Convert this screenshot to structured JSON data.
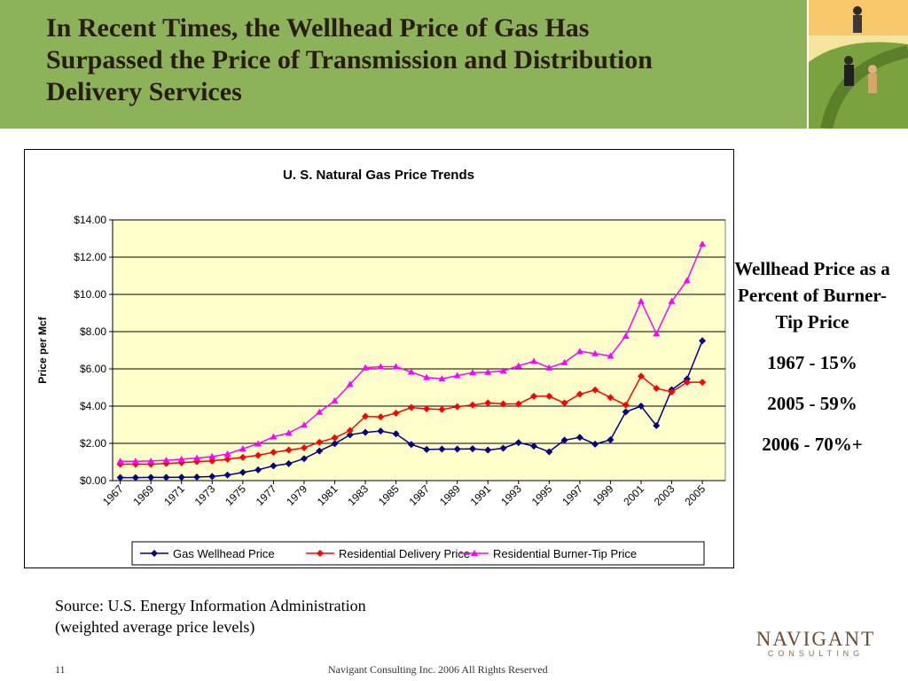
{
  "slide": {
    "title_lines": [
      "In Recent Times, the Wellhead Price of Gas Has",
      "Surpassed the Price of Transmission and Distribution",
      "Delivery Services"
    ]
  },
  "sidebar": {
    "heading": "Wellhead Price as a Percent of Burner-Tip Price",
    "stats": [
      "1967 - 15%",
      "2005 - 59%",
      "2006 - 70%+"
    ]
  },
  "source": {
    "line1": "Source: U.S. Energy Information Administration",
    "line2": "(weighted average price levels)"
  },
  "footer": {
    "page_number": "11",
    "copyright": "Navigant Consulting Inc. 2006 All Rights Reserved"
  },
  "logo": {
    "name": "NAVIGANT",
    "sub": "CONSULTING"
  },
  "colors": {
    "header_band": "#8db35a",
    "plot_background": "#ffffcc",
    "wellhead": "#000080",
    "residential_delivery": "#ff0000",
    "burner_tip": "#ff00ff"
  },
  "chart_data": {
    "type": "line",
    "title": "U. S. Natural Gas Price Trends",
    "xlabel": "",
    "ylabel": "Price per Mcf",
    "x": [
      1967,
      1968,
      1969,
      1970,
      1971,
      1972,
      1973,
      1974,
      1975,
      1976,
      1977,
      1978,
      1979,
      1980,
      1981,
      1982,
      1983,
      1984,
      1985,
      1986,
      1987,
      1988,
      1989,
      1990,
      1991,
      1992,
      1993,
      1994,
      1995,
      1996,
      1997,
      1998,
      1999,
      2000,
      2001,
      2002,
      2003,
      2004,
      2005,
      2006
    ],
    "x_tick_labels": [
      "1967",
      "1969",
      "1971",
      "1973",
      "1975",
      "1977",
      "1979",
      "1981",
      "1983",
      "1985",
      "1987",
      "1989",
      "1991",
      "1993",
      "1995",
      "1997",
      "1999",
      "2001",
      "2003",
      "2005"
    ],
    "ylim": [
      0,
      14
    ],
    "y_tick_labels": [
      "$0.00",
      "$2.00",
      "$4.00",
      "$6.00",
      "$8.00",
      "$10.00",
      "$12.00",
      "$14.00"
    ],
    "grid": true,
    "legend_position": "bottom",
    "series": [
      {
        "name": "Gas Wellhead Price",
        "marker": "diamond",
        "values": [
          0.16,
          0.16,
          0.17,
          0.17,
          0.18,
          0.19,
          0.22,
          0.3,
          0.44,
          0.58,
          0.79,
          0.91,
          1.18,
          1.59,
          1.98,
          2.46,
          2.59,
          2.66,
          2.51,
          1.94,
          1.67,
          1.69,
          1.69,
          1.71,
          1.64,
          1.74,
          2.04,
          1.85,
          1.55,
          2.17,
          2.32,
          1.96,
          2.19,
          3.69,
          4.0,
          2.95,
          4.88,
          5.46,
          7.51,
          null
        ]
      },
      {
        "name": "Residential Delivery Price",
        "marker": "diamond",
        "values": [
          0.88,
          0.88,
          0.88,
          0.92,
          0.96,
          1.02,
          1.06,
          1.15,
          1.25,
          1.36,
          1.52,
          1.64,
          1.76,
          2.06,
          2.3,
          2.69,
          3.45,
          3.42,
          3.62,
          3.93,
          3.85,
          3.82,
          3.97,
          4.06,
          4.17,
          4.12,
          4.12,
          4.53,
          4.53,
          4.17,
          4.64,
          4.87,
          4.46,
          4.06,
          5.61,
          4.95,
          4.76,
          5.28,
          5.28,
          null
        ]
      },
      {
        "name": "Residential Burner-Tip Price",
        "marker": "triangle",
        "values": [
          1.04,
          1.04,
          1.05,
          1.09,
          1.15,
          1.21,
          1.29,
          1.43,
          1.71,
          1.98,
          2.35,
          2.56,
          2.98,
          3.68,
          4.29,
          5.17,
          6.06,
          6.12,
          6.12,
          5.83,
          5.54,
          5.47,
          5.64,
          5.8,
          5.82,
          5.89,
          6.16,
          6.41,
          6.06,
          6.34,
          6.94,
          6.82,
          6.69,
          7.76,
          9.63,
          7.89,
          9.63,
          10.75,
          12.7,
          null
        ]
      }
    ]
  }
}
